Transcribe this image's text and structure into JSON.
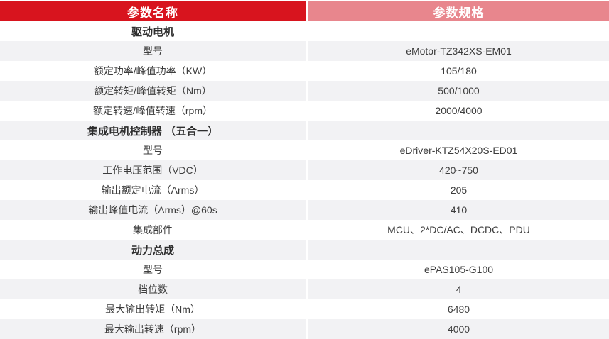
{
  "table": {
    "columns": [
      {
        "label": "参数名称"
      },
      {
        "label": "参数规格"
      }
    ],
    "colors": {
      "header_left_bg": "#d8141e",
      "header_right_bg": "#e8868d",
      "row_alt_bg": "#f2f2f4",
      "header_text": "#ffffff",
      "body_text": "#3d3d3d"
    },
    "rows": [
      {
        "name": "驱动电机",
        "value": "",
        "section": true
      },
      {
        "name": "型号",
        "value": "eMotor-TZ342XS-EM01",
        "section": false
      },
      {
        "name": "额定功率/峰值功率（KW）",
        "value": "105/180",
        "section": false
      },
      {
        "name": "额定转矩/峰值转矩（Nm）",
        "value": "500/1000",
        "section": false
      },
      {
        "name": "额定转速/峰值转速（rpm）",
        "value": "2000/4000",
        "section": false
      },
      {
        "name": "集成电机控制器 （五合一）",
        "value": "",
        "section": true
      },
      {
        "name": "型号",
        "value": "eDriver-KTZ54X20S-ED01",
        "section": false
      },
      {
        "name": "工作电压范围（VDC）",
        "value": "420~750",
        "section": false
      },
      {
        "name": "输出额定电流（Arms）",
        "value": "205",
        "section": false
      },
      {
        "name": "输出峰值电流（Arms）@60s",
        "value": "410",
        "section": false
      },
      {
        "name": "集成部件",
        "value": "MCU、2*DC/AC、DCDC、PDU",
        "section": false
      },
      {
        "name": "动力总成",
        "value": "",
        "section": true
      },
      {
        "name": "型号",
        "value": "ePAS105-G100",
        "section": false
      },
      {
        "name": "档位数",
        "value": "4",
        "section": false
      },
      {
        "name": "最大输出转矩（Nm）",
        "value": "6480",
        "section": false
      },
      {
        "name": "最大输出转速（rpm）",
        "value": "4000",
        "section": false
      }
    ]
  }
}
